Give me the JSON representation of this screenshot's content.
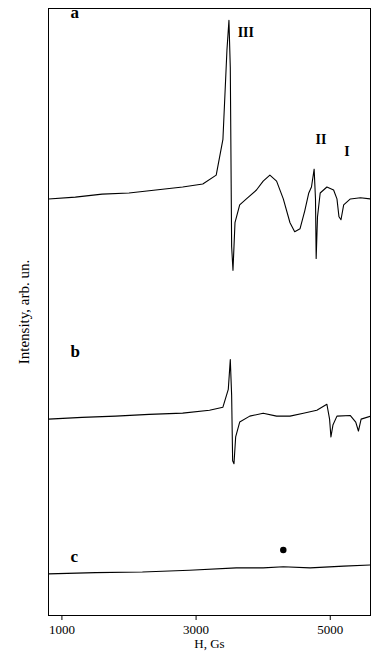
{
  "chart_data": {
    "type": "line",
    "x_label": "H, Gs",
    "y_label": "Intensity, arb. un.",
    "xlim": [
      800,
      5600
    ],
    "xticks": [
      1000,
      3000,
      5000
    ],
    "ylim": [
      0,
      102
    ],
    "tick_labels": "x",
    "series": [
      {
        "name": "a",
        "color": "#000000",
        "x": [
          800,
          1200,
          1600,
          2000,
          2400,
          2800,
          3100,
          3300,
          3400,
          3460,
          3490,
          3510,
          3530,
          3550,
          3580,
          3650,
          3750,
          3900,
          4000,
          4100,
          4200,
          4300,
          4400,
          4470,
          4550,
          4620,
          4680,
          4720,
          4760,
          4780,
          4790,
          4810,
          4850,
          4950,
          5050,
          5100,
          5130,
          5160,
          5200,
          5300,
          5450,
          5600
        ],
        "values": [
          70,
          70.3,
          70.8,
          71,
          71.5,
          72,
          72.5,
          74,
          80,
          95,
          100,
          92,
          62,
          58,
          66,
          69,
          70,
          71.5,
          73,
          74,
          73,
          70,
          66,
          64.5,
          65,
          68,
          71,
          72,
          75,
          70,
          60,
          67,
          71,
          72,
          71.5,
          70,
          67,
          66.5,
          69,
          70,
          70.2,
          70
        ]
      },
      {
        "name": "b",
        "color": "#000000",
        "x": [
          800,
          1300,
          1800,
          2300,
          2800,
          3200,
          3400,
          3480,
          3510,
          3530,
          3545,
          3565,
          3590,
          3650,
          3800,
          4000,
          4200,
          4400,
          4600,
          4800,
          4950,
          4990,
          5010,
          5040,
          5100,
          5300,
          5380,
          5420,
          5460,
          5600
        ],
        "values": [
          33,
          33.3,
          33.5,
          33.8,
          34,
          34.5,
          35,
          38,
          43,
          37,
          26,
          25.5,
          30,
          32.5,
          33.5,
          34,
          33.5,
          33.5,
          34,
          34.5,
          35.5,
          33,
          30,
          32,
          33.5,
          33.6,
          32.5,
          31,
          33,
          33.5
        ]
      },
      {
        "name": "c",
        "color": "#000000",
        "x": [
          800,
          1500,
          2200,
          2900,
          3600,
          4000,
          4300,
          4700,
          5200,
          5600
        ],
        "values": [
          7,
          7.2,
          7.3,
          7.6,
          8,
          8,
          8.2,
          8,
          8.3,
          8.5
        ]
      },
      {
        "type": "scatter",
        "marker": "circle",
        "color": "#000000",
        "x": [
          4300
        ],
        "values": [
          11
        ]
      }
    ],
    "annotations": [
      {
        "text": "III",
        "x": 3560,
        "y": 98
      },
      {
        "text": "II",
        "x": 4720,
        "y": 80
      },
      {
        "text": "I",
        "x": 5150,
        "y": 78
      }
    ]
  }
}
